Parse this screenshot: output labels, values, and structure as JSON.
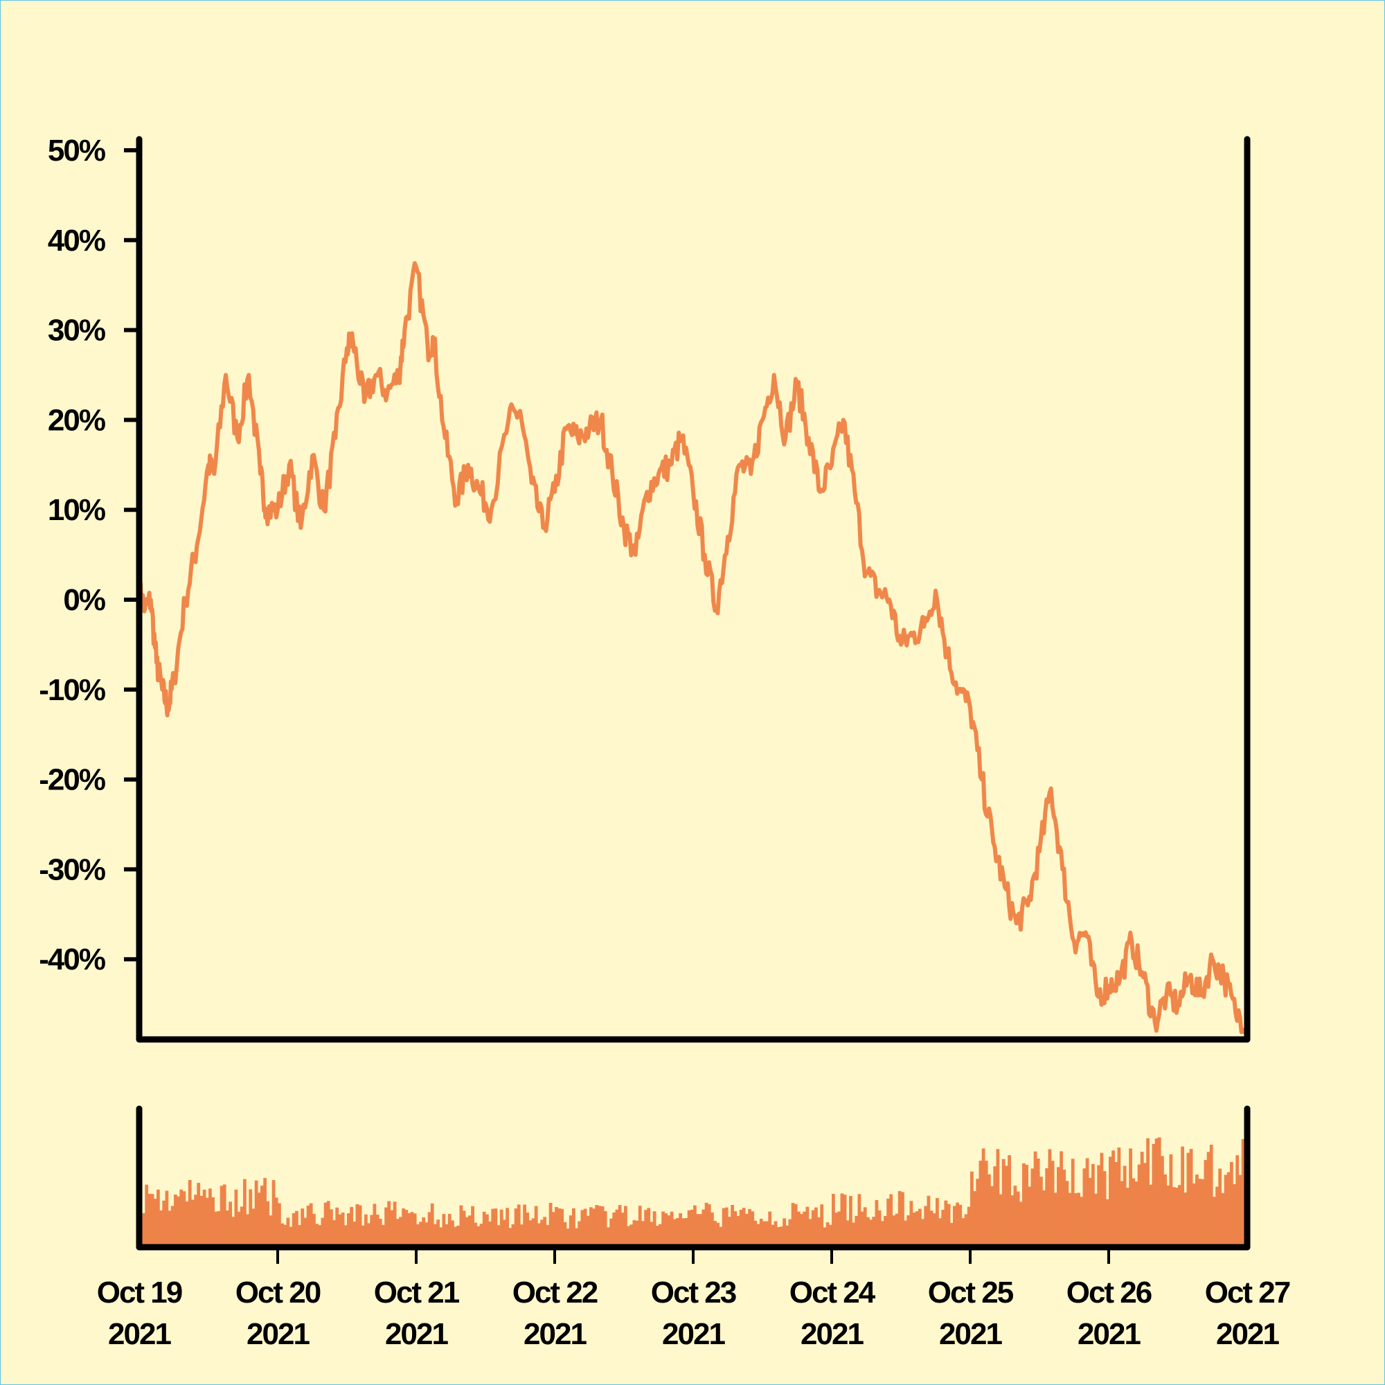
{
  "chart_data": [
    {
      "type": "line",
      "title": "",
      "xlabel": "",
      "ylabel": "",
      "grid": false,
      "line_color": "#f0874a",
      "y_ticks": [
        "50%",
        "40%",
        "30%",
        "20%",
        "10%",
        "0%",
        "-10%",
        "-20%",
        "-30%",
        "-40%"
      ],
      "y_tick_values": [
        50,
        40,
        30,
        20,
        10,
        0,
        -10,
        -20,
        -30,
        -40
      ],
      "ylim": [
        -50,
        50
      ],
      "x_ticks": [
        {
          "date": "Oct 19",
          "year": "2021"
        },
        {
          "date": "Oct 20",
          "year": "2021"
        },
        {
          "date": "Oct 21",
          "year": "2021"
        },
        {
          "date": "Oct 22",
          "year": "2021"
        },
        {
          "date": "Oct 23",
          "year": "2021"
        },
        {
          "date": "Oct 24",
          "year": "2021"
        },
        {
          "date": "Oct 25",
          "year": "2021"
        },
        {
          "date": "Oct 26",
          "year": "2021"
        },
        {
          "date": "Oct 27",
          "year": "2021"
        }
      ],
      "xlim": [
        "2021-10-19 00:00",
        "2021-10-27 00:00"
      ],
      "series": [
        {
          "values": [
            [
              "2021-10-19 00:00",
              1
            ],
            [
              "2021-10-19 01:00",
              -1
            ],
            [
              "2021-10-19 02:00",
              0
            ],
            [
              "2021-10-19 03:00",
              -7
            ],
            [
              "2021-10-19 04:00",
              -10
            ],
            [
              "2021-10-19 05:00",
              -12
            ],
            [
              "2021-10-19 06:00",
              -9
            ],
            [
              "2021-10-19 08:00",
              0
            ],
            [
              "2021-10-19 10:00",
              6
            ],
            [
              "2021-10-19 12:00",
              15
            ],
            [
              "2021-10-19 13:00",
              14
            ],
            [
              "2021-10-19 15:00",
              25
            ],
            [
              "2021-10-19 17:00",
              18
            ],
            [
              "2021-10-19 19:00",
              25
            ],
            [
              "2021-10-19 21:00",
              14
            ],
            [
              "2021-10-19 22:00",
              10
            ],
            [
              "2021-10-20 00:00",
              10
            ],
            [
              "2021-10-20 02:00",
              15
            ],
            [
              "2021-10-20 04:00",
              8
            ],
            [
              "2021-10-20 06:00",
              16
            ],
            [
              "2021-10-20 08:00",
              10
            ],
            [
              "2021-10-20 10:00",
              18
            ],
            [
              "2021-10-20 12:00",
              28
            ],
            [
              "2021-10-20 13:00",
              29
            ],
            [
              "2021-10-20 15:00",
              22
            ],
            [
              "2021-10-20 17:00",
              25
            ],
            [
              "2021-10-20 19:00",
              23
            ],
            [
              "2021-10-20 21:00",
              25
            ],
            [
              "2021-10-20 22:00",
              30
            ],
            [
              "2021-10-21 00:00",
              37
            ],
            [
              "2021-10-21 02:00",
              28
            ],
            [
              "2021-10-21 03:00",
              29
            ],
            [
              "2021-10-21 05:00",
              18
            ],
            [
              "2021-10-21 07:00",
              11
            ],
            [
              "2021-10-21 09:00",
              15
            ],
            [
              "2021-10-21 11:00",
              12
            ],
            [
              "2021-10-21 13:00",
              10
            ],
            [
              "2021-10-21 16:00",
              20
            ],
            [
              "2021-10-21 18:00",
              21
            ],
            [
              "2021-10-21 20:00",
              13
            ],
            [
              "2021-10-21 22:00",
              8
            ],
            [
              "2021-10-22 00:00",
              12
            ],
            [
              "2021-10-22 02:00",
              19
            ],
            [
              "2021-10-22 04:00",
              18
            ],
            [
              "2021-10-22 06:00",
              19
            ],
            [
              "2021-10-22 08:00",
              20
            ],
            [
              "2021-10-22 10:00",
              14
            ],
            [
              "2021-10-22 12:00",
              8
            ],
            [
              "2021-10-22 14:00",
              5
            ],
            [
              "2021-10-22 16:00",
              12
            ],
            [
              "2021-10-22 18:00",
              14
            ],
            [
              "2021-10-22 20:00",
              15
            ],
            [
              "2021-10-22 22:00",
              18
            ],
            [
              "2021-10-23 00:00",
              12
            ],
            [
              "2021-10-23 02:00",
              5
            ],
            [
              "2021-10-23 04:00",
              -1
            ],
            [
              "2021-10-23 06:00",
              7
            ],
            [
              "2021-10-23 08:00",
              15
            ],
            [
              "2021-10-23 10:00",
              14
            ],
            [
              "2021-10-23 12:00",
              20
            ],
            [
              "2021-10-23 14:00",
              25
            ],
            [
              "2021-10-23 16:00",
              18
            ],
            [
              "2021-10-23 18:00",
              24
            ],
            [
              "2021-10-23 20:00",
              18
            ],
            [
              "2021-10-23 22:00",
              12
            ],
            [
              "2021-10-24 00:00",
              15
            ],
            [
              "2021-10-24 02:00",
              20
            ],
            [
              "2021-10-24 04:00",
              12
            ],
            [
              "2021-10-24 06:00",
              3
            ],
            [
              "2021-10-24 08:00",
              1
            ],
            [
              "2021-10-24 10:00",
              0
            ],
            [
              "2021-10-24 12:00",
              -5
            ],
            [
              "2021-10-24 14:00",
              -4
            ],
            [
              "2021-10-24 16:00",
              -3
            ],
            [
              "2021-10-24 18:00",
              1
            ],
            [
              "2021-10-24 20:00",
              -6
            ],
            [
              "2021-10-24 22:00",
              -10
            ],
            [
              "2021-10-25 00:00",
              -12
            ],
            [
              "2021-10-25 02:00",
              -20
            ],
            [
              "2021-10-25 04:00",
              -27
            ],
            [
              "2021-10-25 06:00",
              -32
            ],
            [
              "2021-10-25 08:00",
              -36
            ],
            [
              "2021-10-25 10:00",
              -34
            ],
            [
              "2021-10-25 12:00",
              -28
            ],
            [
              "2021-10-25 14:00",
              -21
            ],
            [
              "2021-10-25 16:00",
              -30
            ],
            [
              "2021-10-25 18:00",
              -38
            ],
            [
              "2021-10-25 20:00",
              -37
            ],
            [
              "2021-10-25 22:00",
              -44
            ],
            [
              "2021-10-26 00:00",
              -43
            ],
            [
              "2021-10-26 02:00",
              -42
            ],
            [
              "2021-10-26 04:00",
              -38
            ],
            [
              "2021-10-26 06:00",
              -42
            ],
            [
              "2021-10-26 08:00",
              -47
            ],
            [
              "2021-10-26 10:00",
              -44
            ],
            [
              "2021-10-26 12:00",
              -45
            ],
            [
              "2021-10-26 14:00",
              -42
            ],
            [
              "2021-10-26 16:00",
              -44
            ],
            [
              "2021-10-26 18:00",
              -40
            ],
            [
              "2021-10-26 20:00",
              -42
            ],
            [
              "2021-10-26 22:00",
              -46
            ],
            [
              "2021-10-27 00:00",
              -47
            ]
          ]
        }
      ]
    },
    {
      "type": "bar",
      "title": "",
      "xlabel": "",
      "ylabel": "",
      "bar_color": "#ee834a",
      "levels": [
        {
          "from": "2021-10-19 00:00",
          "to": "2021-10-20 00:00",
          "value": 0.36
        },
        {
          "from": "2021-10-20 00:00",
          "to": "2021-10-21 00:00",
          "value": 0.24
        },
        {
          "from": "2021-10-21 00:00",
          "to": "2021-10-22 00:00",
          "value": 0.23
        },
        {
          "from": "2021-10-22 00:00",
          "to": "2021-10-23 00:00",
          "value": 0.22
        },
        {
          "from": "2021-10-23 00:00",
          "to": "2021-10-24 00:00",
          "value": 0.23
        },
        {
          "from": "2021-10-24 00:00",
          "to": "2021-10-25 00:00",
          "value": 0.29
        },
        {
          "from": "2021-10-25 00:00",
          "to": "2021-10-26 00:00",
          "value": 0.52
        },
        {
          "from": "2021-10-26 00:00",
          "to": "2021-10-27 00:00",
          "value": 0.58
        }
      ]
    }
  ]
}
